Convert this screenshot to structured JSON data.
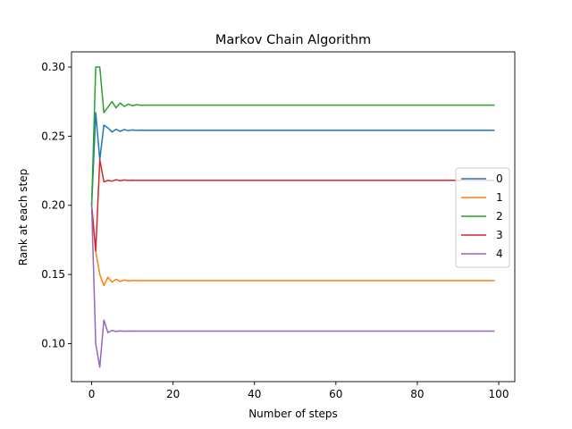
{
  "chart_data": {
    "type": "line",
    "title": "Markov Chain Algorithm",
    "xlabel": "Number of steps",
    "ylabel": "Rank at each step",
    "xlim": [
      -4.95,
      103.95
    ],
    "ylim": [
      0.0725,
      0.311
    ],
    "x_ticks": [
      0,
      20,
      40,
      60,
      80,
      100
    ],
    "y_ticks": [
      0.1,
      0.15,
      0.2,
      0.25,
      0.3
    ],
    "x_tick_labels": [
      "0",
      "20",
      "40",
      "60",
      "80",
      "100"
    ],
    "y_tick_labels": [
      "0.10",
      "0.15",
      "0.20",
      "0.25",
      "0.30"
    ],
    "grid": false,
    "legend_position": "center-right",
    "steps": 100,
    "series": [
      {
        "name": "0",
        "color": "#1f77b4",
        "values": [
          0.2,
          0.267,
          0.233,
          0.258,
          0.256,
          0.253,
          0.255,
          0.2535,
          0.2548,
          0.254,
          0.2545,
          0.2542,
          0.2544
        ],
        "final": 0.2543
      },
      {
        "name": "1",
        "color": "#ff7f0e",
        "values": [
          0.2,
          0.167,
          0.15,
          0.142,
          0.148,
          0.1445,
          0.1465,
          0.145,
          0.146,
          0.1453,
          0.1457,
          0.1455
        ],
        "final": 0.1455
      },
      {
        "name": "2",
        "color": "#2ca02c",
        "values": [
          0.2,
          0.3,
          0.3,
          0.267,
          0.271,
          0.275,
          0.2705,
          0.274,
          0.2715,
          0.2732,
          0.272,
          0.2728,
          0.2724
        ],
        "final": 0.2725
      },
      {
        "name": "3",
        "color": "#d62728",
        "values": [
          0.2,
          0.167,
          0.233,
          0.217,
          0.218,
          0.2175,
          0.2185,
          0.2178,
          0.2183,
          0.218,
          0.2182,
          0.2181
        ],
        "final": 0.2181
      },
      {
        "name": "4",
        "color": "#9467bd",
        "values": [
          0.2,
          0.1,
          0.083,
          0.117,
          0.108,
          0.1095,
          0.1088,
          0.1092,
          0.1089,
          0.1091,
          0.109
        ],
        "final": 0.109
      }
    ]
  }
}
